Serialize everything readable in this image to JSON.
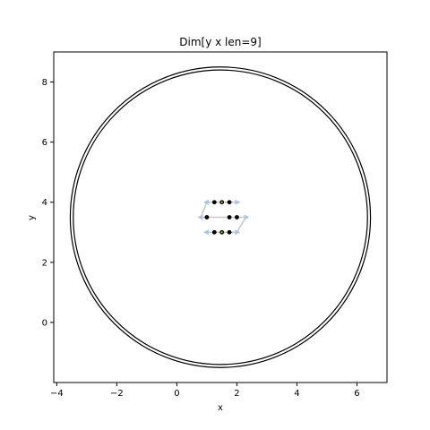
{
  "chart_data": {
    "type": "scatter",
    "title": "Dim[y x len=9]",
    "xlabel": "x",
    "ylabel": "y",
    "xlim": [
      -4.1,
      7.0
    ],
    "ylim": [
      -2.0,
      9.0
    ],
    "xticks": [
      -4,
      -2,
      0,
      2,
      4,
      6
    ],
    "xtick_labels": [
      "−4",
      "−2",
      "0",
      "2",
      "4",
      "6"
    ],
    "yticks": [
      0,
      2,
      4,
      6,
      8
    ],
    "ytick_labels": [
      "0",
      "2",
      "4",
      "6",
      "8"
    ],
    "grid": false,
    "circles": [
      {
        "cx": 1.45,
        "cy": 3.5,
        "r": 5.0
      },
      {
        "cx": 1.45,
        "cy": 3.5,
        "r": 4.9
      }
    ],
    "path": [
      {
        "x": 1.0,
        "y": 3.0
      },
      {
        "x": 1.25,
        "y": 3.0
      },
      {
        "x": 1.5,
        "y": 3.0
      },
      {
        "x": 1.75,
        "y": 3.0
      },
      {
        "x": 2.0,
        "y": 3.0
      },
      {
        "x": 2.3,
        "y": 3.5
      },
      {
        "x": 2.0,
        "y": 3.5
      },
      {
        "x": 1.75,
        "y": 3.5
      },
      {
        "x": 1.5,
        "y": 3.5
      },
      {
        "x": 1.25,
        "y": 3.5
      },
      {
        "x": 1.0,
        "y": 3.5
      },
      {
        "x": 0.8,
        "y": 3.5
      },
      {
        "x": 1.0,
        "y": 4.0
      },
      {
        "x": 1.25,
        "y": 4.0
      },
      {
        "x": 1.5,
        "y": 4.0
      },
      {
        "x": 1.75,
        "y": 4.0
      },
      {
        "x": 2.0,
        "y": 4.0
      }
    ],
    "points": [
      {
        "x": 1.25,
        "y": 4.0
      },
      {
        "x": 1.5,
        "y": 4.0
      },
      {
        "x": 1.75,
        "y": 4.0
      },
      {
        "x": 1.0,
        "y": 3.5
      },
      {
        "x": 1.75,
        "y": 3.5
      },
      {
        "x": 2.0,
        "y": 3.5
      },
      {
        "x": 1.25,
        "y": 3.0
      },
      {
        "x": 1.5,
        "y": 3.0
      },
      {
        "x": 1.75,
        "y": 3.0
      }
    ],
    "colors": {
      "circle": "#000000",
      "path": "#c8c8c8",
      "arrow": "#b0c4de",
      "point": "#000000",
      "point_accent": "#d4a017"
    }
  }
}
